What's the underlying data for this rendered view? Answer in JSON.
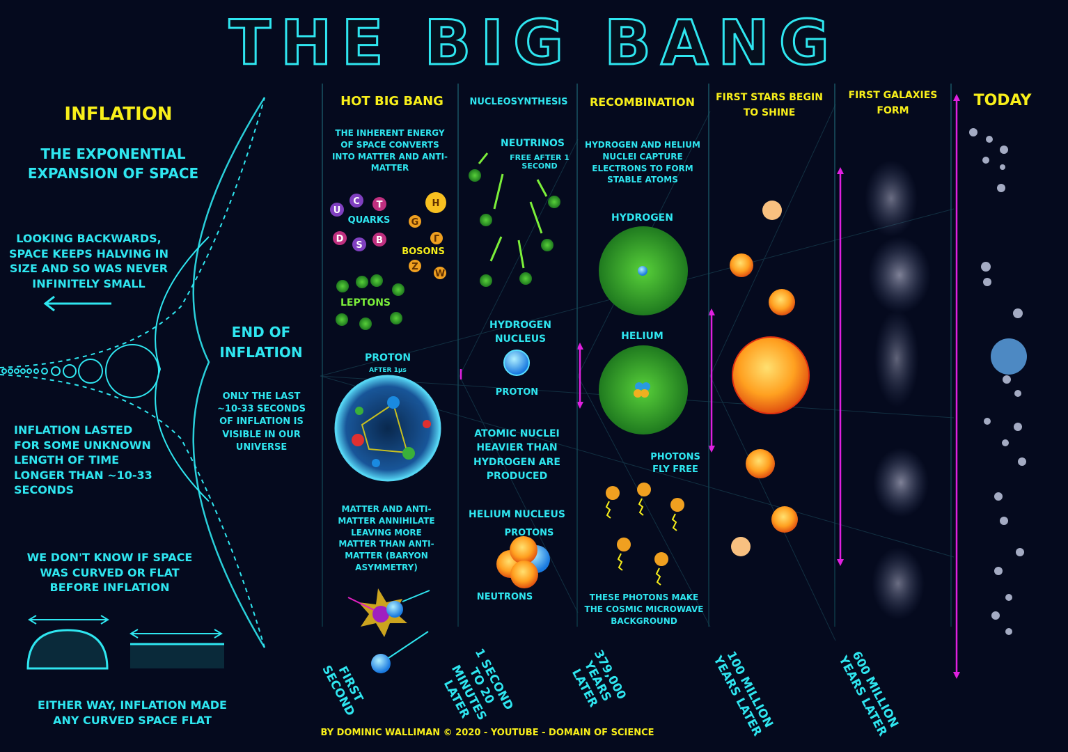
{
  "title": "THE BIG BANG",
  "inflation": {
    "heading": "INFLATION",
    "subtitle": "THE EXPONENTIAL EXPANSION OF SPACE",
    "looking_back": "LOOKING BACKWARDS, SPACE KEEPS HALVING IN SIZE AND SO WAS NEVER INFINITELY SMALL",
    "lasted": "INFLATION LASTED FOR SOME UNKNOWN LENGTH OF TIME LONGER THAN ~10-33 SECONDS",
    "curved": "WE DON'T KNOW IF SPACE WAS CURVED OR FLAT BEFORE INFLATION",
    "either_way": "EITHER WAY, INFLATION MADE ANY CURVED SPACE FLAT",
    "end_heading": "END OF INFLATION",
    "end_text": "ONLY THE LAST ~10-33 SECONDS OF INFLATION IS VISIBLE IN OUR UNIVERSE"
  },
  "hot_big_bang": {
    "heading": "HOT BIG BANG",
    "energy_text": "THE INHERENT ENERGY OF SPACE CONVERTS INTO MATTER AND ANTI-MATTER",
    "quarks_label": "QUARKS",
    "quarks": [
      "u",
      "c",
      "t",
      "d",
      "s",
      "b"
    ],
    "bosons_label": "BOSONS",
    "bosons": [
      "H",
      "g",
      "γ",
      "Z",
      "W"
    ],
    "leptons_label": "LEPTONS",
    "proton_label": "PROTON",
    "proton_time": "AFTER 1μs",
    "matter_text": "MATTER AND ANTI-MATTER ANNIHILATE LEAVING MORE MATTER THAN ANTI-MATTER (BARYON ASYMMETRY)",
    "time": "FIRST SECOND"
  },
  "nucleosynthesis": {
    "heading": "NUCLEOSYNTHESIS",
    "neutrinos": "NEUTRINOS",
    "neutrinos_free": "FREE AFTER 1 SECOND",
    "hydrogen_nucleus": "HYDROGEN NUCLEUS",
    "proton": "PROTON",
    "atomic_nuclei": "ATOMIC NUCLEI HEAVIER THAN HYDROGEN ARE PRODUCED",
    "helium_nucleus": "HELIUM NUCLEUS",
    "protons": "PROTONS",
    "neutrons": "NEUTRONS",
    "time": "1 SECOND TO 20 MINUTES LATER"
  },
  "recombination": {
    "heading": "RECOMBINATION",
    "capture_text": "HYDROGEN AND HELIUM NUCLEI CAPTURE ELECTRONS TO FORM STABLE ATOMS",
    "hydrogen": "HYDROGEN",
    "helium": "HELIUM",
    "photons": "PHOTONS FLY FREE",
    "cmb_text": "THESE PHOTONS MAKE THE COSMIC MICROWAVE BACKGROUND",
    "time": "379,000 YEARS LATER"
  },
  "first_stars": {
    "heading": "FIRST STARS BEGIN TO SHINE",
    "time": "100 MILLION YEARS LATER"
  },
  "first_galaxies": {
    "heading": "FIRST GALAXIES FORM",
    "time": "600 MILLION YEARS LATER"
  },
  "today": {
    "heading": "TODAY"
  },
  "credit": "BY DOMINIC WALLIMAN © 2020 - YOUTUBE - DOMAIN OF SCIENCE",
  "colors": {
    "background": "#050a1e",
    "cyan": "#2fe6f0",
    "yellow": "#f8ef1a",
    "magenta": "#e020e0",
    "green": "#2fa82f"
  }
}
